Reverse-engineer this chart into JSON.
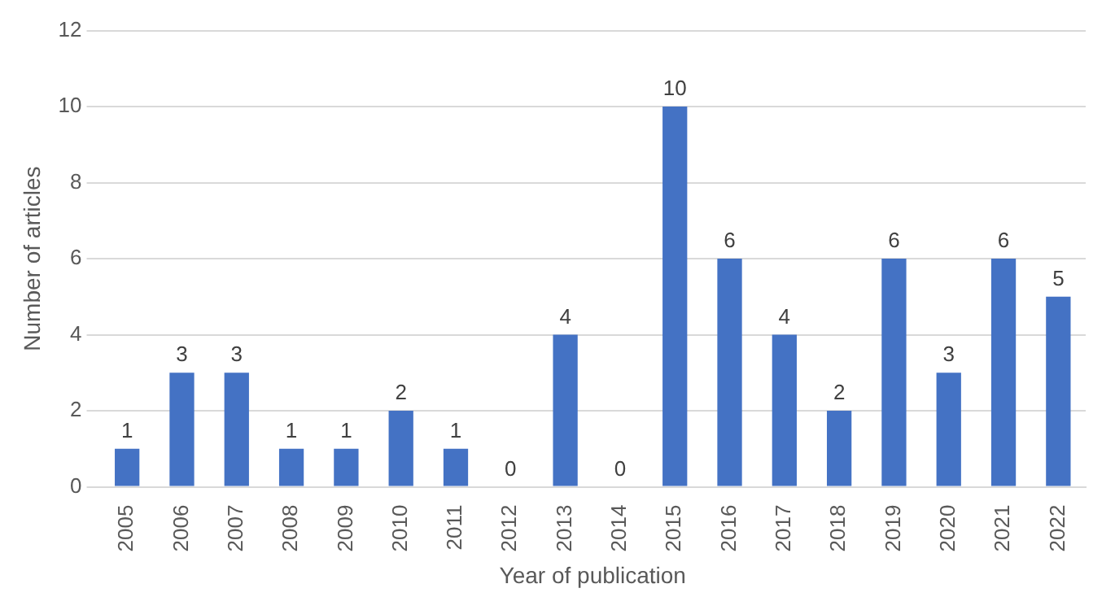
{
  "chart_data": {
    "type": "bar",
    "xlabel": "Year of publication",
    "ylabel": "Number of articles",
    "categories": [
      "2005",
      "2006",
      "2007",
      "2008",
      "2009",
      "2010",
      "2011",
      "2012",
      "2013",
      "2014",
      "2015",
      "2016",
      "2017",
      "2018",
      "2019",
      "2020",
      "2021",
      "2022"
    ],
    "values": [
      1,
      3,
      3,
      1,
      1,
      2,
      1,
      0,
      4,
      0,
      10,
      6,
      4,
      2,
      6,
      3,
      6,
      5
    ],
    "color": "#4472c4",
    "ylim": [
      0,
      12
    ],
    "yticks": [
      0,
      2,
      4,
      6,
      8,
      10,
      12
    ],
    "grid": "y",
    "data_labels": true
  }
}
